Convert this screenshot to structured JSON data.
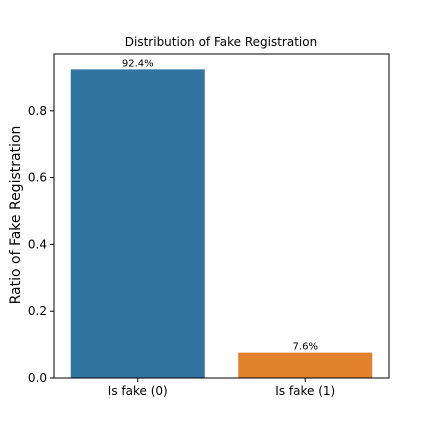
{
  "chart_data": {
    "type": "bar",
    "title": "Distribution of Fake Registration",
    "xlabel": "",
    "ylabel": "Ratio of Fake Registration",
    "categories": [
      "Is fake (0)",
      "Is fake (1)"
    ],
    "values": [
      0.924,
      0.076
    ],
    "data_labels": [
      "92.4%",
      "7.6%"
    ],
    "colors": [
      "#3274a1",
      "#e1812c"
    ],
    "ylim": [
      0,
      0.97
    ],
    "yticks": [
      0.0,
      0.2,
      0.4,
      0.6,
      0.8
    ],
    "ytick_labels": [
      "0.0",
      "0.2",
      "0.4",
      "0.6",
      "0.8"
    ],
    "grid": false,
    "legend": "none"
  }
}
